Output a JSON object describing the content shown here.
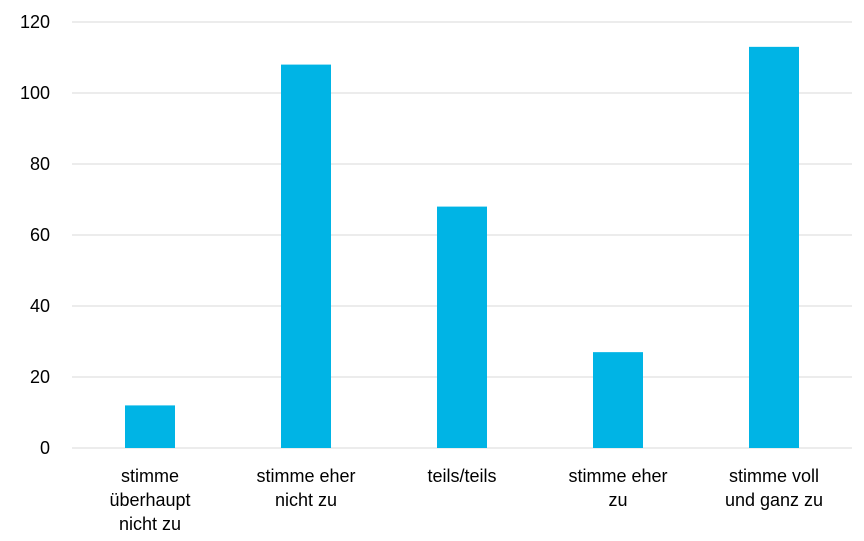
{
  "chart_data": {
    "type": "bar",
    "categories": [
      [
        "stimme",
        "überhaupt",
        "nicht zu"
      ],
      [
        "stimme eher",
        "nicht zu"
      ],
      [
        "teils/teils"
      ],
      [
        "stimme eher",
        "zu"
      ],
      [
        "stimme voll",
        "und ganz zu"
      ]
    ],
    "values": [
      12,
      108,
      68,
      27,
      113
    ],
    "ylim": [
      0,
      120
    ],
    "yticks": [
      0,
      20,
      40,
      60,
      80,
      100,
      120
    ],
    "grid": true,
    "legend": "none",
    "bar_color": "#00B4E5",
    "grid_color": "#D9D9D9"
  }
}
